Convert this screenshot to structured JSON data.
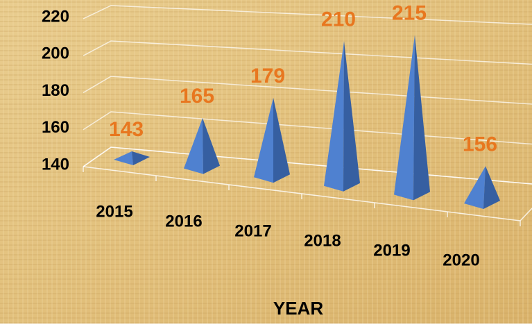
{
  "chart_data": {
    "type": "bar",
    "categories": [
      "2015",
      "2016",
      "2017",
      "2018",
      "2019",
      "2020"
    ],
    "values": [
      143,
      165,
      179,
      210,
      215,
      156
    ],
    "color": "#4f81d0",
    "label_color": "#e8771f",
    "ylim": [
      140,
      220
    ],
    "yticks": [
      140,
      160,
      180,
      200,
      220
    ],
    "grid": true,
    "x_label": "YEAR"
  }
}
